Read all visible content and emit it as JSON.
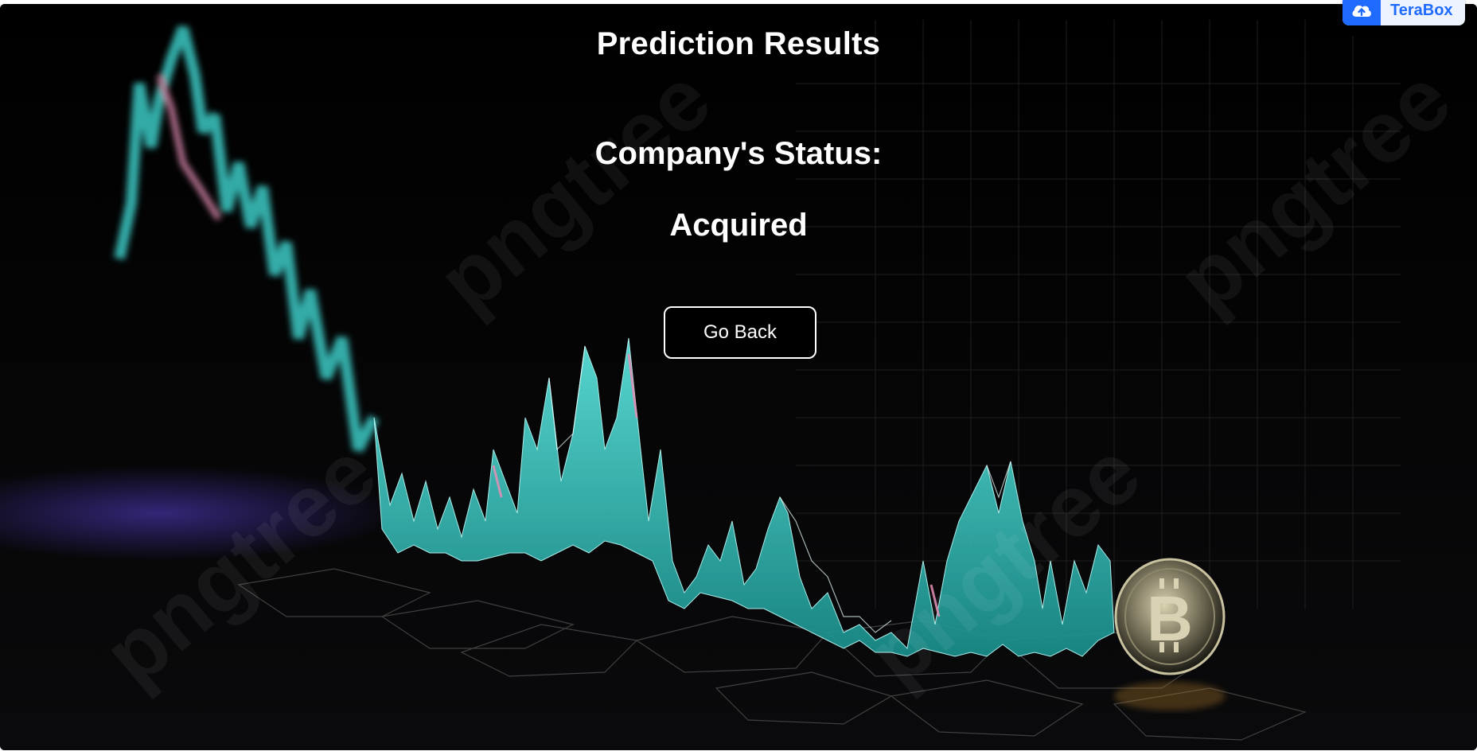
{
  "page": {
    "title": "Prediction Results",
    "status_label": "Company's Status:",
    "status_value": "Acquired"
  },
  "actions": {
    "go_back_label": "Go Back"
  },
  "overlay": {
    "badge_label": "TeraBox",
    "badge_icon": "cloud-upload-icon"
  },
  "background": {
    "watermark_text": "pngtree",
    "coin_icon": "bitcoin-coin-icon"
  },
  "colors": {
    "background": "#000000",
    "text": "#ffffff",
    "chart_cyan": "#3fd6d0",
    "chart_pink": "#e58fb6",
    "badge_blue": "#1f6bff"
  }
}
